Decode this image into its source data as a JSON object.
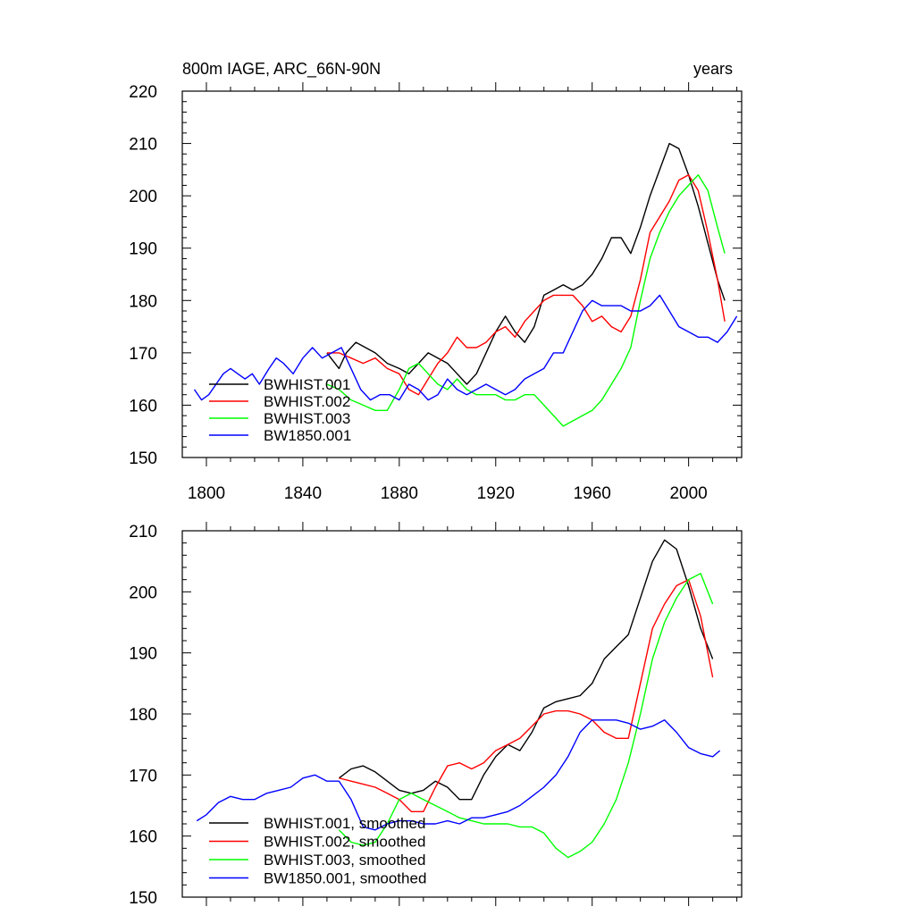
{
  "chart_data": [
    {
      "type": "line",
      "title": "800m IAGE, ARC_66N-90N",
      "right_title": "years",
      "xlim": [
        1790,
        2022
      ],
      "ylim": [
        150,
        220
      ],
      "xticks": [
        1800,
        1840,
        1880,
        1920,
        1960,
        2000
      ],
      "yticks": [
        150,
        160,
        170,
        180,
        190,
        200,
        210,
        220
      ],
      "legend_position": "bottom-left",
      "series": [
        {
          "name": "BWHIST.001",
          "color": "#000000",
          "x": [
            1850,
            1855,
            1858,
            1862,
            1866,
            1870,
            1875,
            1880,
            1884,
            1888,
            1892,
            1896,
            1900,
            1904,
            1908,
            1912,
            1916,
            1920,
            1924,
            1928,
            1932,
            1936,
            1940,
            1944,
            1948,
            1952,
            1956,
            1960,
            1964,
            1968,
            1972,
            1976,
            1980,
            1984,
            1988,
            1992,
            1996,
            2000,
            2004,
            2008,
            2012,
            2015
          ],
          "y": [
            170,
            167,
            170,
            172,
            171,
            170,
            168,
            167,
            166,
            168,
            170,
            169,
            168,
            166,
            164,
            166,
            170,
            174,
            177,
            174,
            172,
            175,
            181,
            182,
            183,
            182,
            183,
            185,
            188,
            192,
            192,
            189,
            194,
            200,
            205,
            210,
            209,
            204,
            198,
            191,
            184,
            180
          ]
        },
        {
          "name": "BWHIST.002",
          "color": "#ff0000",
          "x": [
            1850,
            1855,
            1860,
            1865,
            1870,
            1875,
            1880,
            1884,
            1888,
            1892,
            1896,
            1900,
            1904,
            1908,
            1912,
            1916,
            1920,
            1924,
            1928,
            1932,
            1936,
            1940,
            1944,
            1948,
            1952,
            1956,
            1960,
            1964,
            1968,
            1972,
            1976,
            1980,
            1984,
            1988,
            1992,
            1996,
            2000,
            2004,
            2008,
            2012,
            2015
          ],
          "y": [
            170,
            170,
            169,
            168,
            169,
            167,
            166,
            163,
            162,
            165,
            168,
            170,
            173,
            171,
            171,
            172,
            174,
            175,
            173,
            176,
            178,
            180,
            181,
            181,
            181,
            179,
            176,
            177,
            175,
            174,
            177,
            184,
            193,
            196,
            199,
            203,
            204,
            201,
            193,
            184,
            176
          ]
        },
        {
          "name": "BWHIST.003",
          "color": "#00ff00",
          "x": [
            1850,
            1855,
            1860,
            1865,
            1870,
            1875,
            1880,
            1884,
            1888,
            1892,
            1896,
            1900,
            1904,
            1908,
            1912,
            1916,
            1920,
            1924,
            1928,
            1932,
            1936,
            1940,
            1944,
            1948,
            1952,
            1956,
            1960,
            1964,
            1968,
            1972,
            1976,
            1980,
            1984,
            1988,
            1992,
            1996,
            2000,
            2004,
            2008,
            2012,
            2015
          ],
          "y": [
            164,
            163,
            161,
            160,
            159,
            159,
            163,
            167,
            168,
            166,
            164,
            163,
            165,
            163,
            162,
            162,
            162,
            161,
            161,
            162,
            162,
            160,
            158,
            156,
            157,
            158,
            159,
            161,
            164,
            167,
            171,
            180,
            188,
            193,
            197,
            200,
            202,
            204,
            201,
            194,
            189
          ]
        },
        {
          "name": "BW1850.001",
          "color": "#0000ff",
          "x": [
            1795,
            1798,
            1801,
            1804,
            1807,
            1810,
            1813,
            1816,
            1819,
            1822,
            1826,
            1829,
            1832,
            1836,
            1840,
            1844,
            1848,
            1852,
            1856,
            1860,
            1864,
            1868,
            1872,
            1876,
            1880,
            1884,
            1888,
            1892,
            1896,
            1900,
            1904,
            1908,
            1912,
            1916,
            1920,
            1924,
            1928,
            1932,
            1936,
            1940,
            1944,
            1948,
            1952,
            1956,
            1960,
            1964,
            1968,
            1972,
            1976,
            1980,
            1984,
            1988,
            1992,
            1996,
            2000,
            2004,
            2008,
            2012,
            2016,
            2020
          ],
          "y": [
            163,
            161,
            162,
            164,
            166,
            167,
            166,
            165,
            166,
            164,
            167,
            169,
            168,
            166,
            169,
            171,
            169,
            170,
            171,
            167,
            163,
            161,
            162,
            162,
            161,
            164,
            163,
            161,
            162,
            165,
            163,
            162,
            163,
            164,
            163,
            162,
            163,
            165,
            166,
            167,
            170,
            170,
            174,
            178,
            180,
            179,
            179,
            179,
            178,
            178,
            179,
            181,
            178,
            175,
            174,
            173,
            173,
            172,
            174,
            177
          ]
        }
      ]
    },
    {
      "type": "line",
      "xlim": [
        1790,
        2022
      ],
      "ylim": [
        150,
        210
      ],
      "xticks": [
        1800,
        1840,
        1880,
        1920,
        1960,
        2000
      ],
      "yticks": [
        150,
        160,
        170,
        180,
        190,
        200,
        210
      ],
      "legend_position": "bottom-left",
      "series": [
        {
          "name": "BWHIST.001, smoothed",
          "color": "#000000",
          "x": [
            1855,
            1860,
            1865,
            1870,
            1875,
            1880,
            1885,
            1890,
            1895,
            1900,
            1905,
            1910,
            1915,
            1920,
            1925,
            1930,
            1935,
            1940,
            1945,
            1950,
            1955,
            1960,
            1965,
            1970,
            1975,
            1980,
            1985,
            1990,
            1995,
            2000,
            2005,
            2010
          ],
          "y": [
            169.5,
            171,
            171.5,
            170.5,
            169,
            167.5,
            167,
            167.5,
            169,
            168,
            166,
            166,
            170,
            173,
            175,
            174,
            177,
            181,
            182,
            182.5,
            183,
            185,
            189,
            191,
            193,
            199,
            205,
            208.5,
            207,
            201,
            194,
            189
          ]
        },
        {
          "name": "BWHIST.002, smoothed",
          "color": "#ff0000",
          "x": [
            1855,
            1860,
            1865,
            1870,
            1875,
            1880,
            1885,
            1890,
            1895,
            1900,
            1905,
            1910,
            1915,
            1920,
            1925,
            1930,
            1935,
            1940,
            1945,
            1950,
            1955,
            1960,
            1965,
            1970,
            1975,
            1980,
            1985,
            1990,
            1995,
            2000,
            2005,
            2010
          ],
          "y": [
            169.5,
            169,
            168.5,
            168,
            167,
            166,
            164,
            164,
            168,
            171.5,
            172,
            171,
            172,
            174,
            175,
            176,
            178,
            180,
            180.5,
            180.5,
            180,
            179,
            177,
            176,
            176,
            185,
            194,
            198,
            201,
            202,
            196,
            186
          ]
        },
        {
          "name": "BWHIST.003, smoothed",
          "color": "#00ff00",
          "x": [
            1855,
            1860,
            1865,
            1870,
            1875,
            1880,
            1885,
            1890,
            1895,
            1900,
            1905,
            1910,
            1915,
            1920,
            1925,
            1930,
            1935,
            1940,
            1945,
            1950,
            1955,
            1960,
            1965,
            1970,
            1975,
            1980,
            1985,
            1990,
            1995,
            2000,
            2005,
            2010
          ],
          "y": [
            161,
            159,
            158.5,
            159,
            162,
            166,
            167,
            166,
            165,
            164,
            163,
            162.5,
            162,
            162,
            162,
            161.5,
            161.5,
            160.5,
            158,
            156.5,
            157.5,
            159,
            162,
            166,
            172,
            180,
            189,
            195,
            199,
            202,
            203,
            198
          ]
        },
        {
          "name": "BW1850.001, smoothed",
          "color": "#0000ff",
          "x": [
            1796,
            1800,
            1805,
            1810,
            1815,
            1820,
            1825,
            1830,
            1835,
            1840,
            1845,
            1850,
            1855,
            1860,
            1865,
            1870,
            1875,
            1880,
            1885,
            1890,
            1895,
            1900,
            1905,
            1910,
            1915,
            1920,
            1925,
            1930,
            1935,
            1940,
            1945,
            1950,
            1955,
            1960,
            1965,
            1970,
            1975,
            1980,
            1985,
            1990,
            1995,
            2000,
            2005,
            2010,
            2013
          ],
          "y": [
            162.5,
            163.5,
            165.5,
            166.5,
            166,
            166,
            167,
            167.5,
            168,
            169.5,
            170,
            169,
            169,
            166,
            161.5,
            161,
            162,
            162.5,
            162.5,
            162,
            162,
            162.5,
            162,
            163,
            163,
            163.5,
            164,
            165,
            166.5,
            168,
            170,
            173,
            177,
            179,
            179,
            179,
            178.5,
            177.5,
            178,
            179,
            177,
            174.5,
            173.5,
            173,
            174
          ]
        }
      ]
    }
  ]
}
